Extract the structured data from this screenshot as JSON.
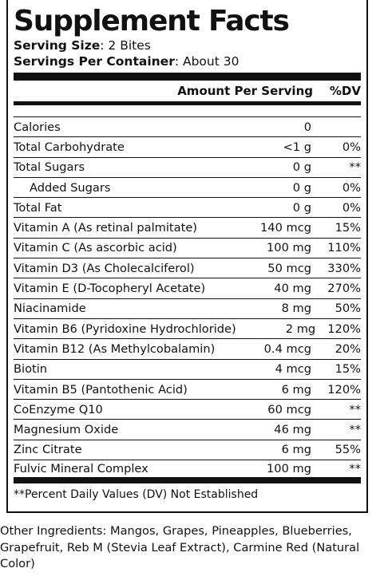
{
  "title": "Supplement Facts",
  "serving": {
    "size_label": "Serving Size",
    "size_value": ": 2 Bites",
    "per_container_label": "Servings Per Container",
    "per_container_value": ": About 30"
  },
  "header": {
    "amount_label": "Amount Per Serving",
    "dv_label": "%DV"
  },
  "rows": [
    {
      "name": "Calories",
      "amount": "0",
      "dv": ""
    },
    {
      "name": "Total Carbohydrate",
      "amount": "<1 g",
      "dv": "0%"
    },
    {
      "name": "Total Sugars",
      "amount": "0 g",
      "dv": "**"
    },
    {
      "name": "Added Sugars",
      "amount": "0 g",
      "dv": "0%"
    },
    {
      "name": "Total Fat",
      "amount": "0 g",
      "dv": "0%"
    },
    {
      "name": "Vitamin A (As retinal palmitate)",
      "amount": "140 mcg",
      "dv": "15%"
    },
    {
      "name": "Vitamin C (As ascorbic acid)",
      "amount": "100 mg",
      "dv": "110%"
    },
    {
      "name": "Vitamin D3 (As Cholecalciferol)",
      "amount": "50 mcg",
      "dv": "330%"
    },
    {
      "name": "Vitamin E (D-Tocopheryl Acetate)",
      "amount": "40 mg",
      "dv": "270%"
    },
    {
      "name": "Niacinamide",
      "amount": "8 mg",
      "dv": "50%"
    },
    {
      "name": "Vitamin B6 (Pyridoxine Hydrochloride)",
      "amount": "2 mg",
      "dv": "120%"
    },
    {
      "name": "Vitamin B12 (As Methylcobalamin)",
      "amount": "0.4 mcg",
      "dv": "20%"
    },
    {
      "name": "Biotin",
      "amount": "4 mcg",
      "dv": "15%"
    },
    {
      "name": "Vitamin B5 (Pantothenic Acid)",
      "amount": "6 mg",
      "dv": "120%"
    },
    {
      "name": "CoEnzyme Q10",
      "amount": "60 mcg",
      "dv": "**"
    },
    {
      "name": "Magnesium Oxide",
      "amount": "46 mg",
      "dv": "**"
    },
    {
      "name": "Zinc Citrate",
      "amount": "6 mg",
      "dv": "55%"
    },
    {
      "name": "Fulvic Mineral Complex",
      "amount": "100 mg",
      "dv": "**"
    }
  ],
  "footnote": "**Percent Daily Values (DV) Not Established",
  "other_ingredients": "Other Ingredients: Mangos, Grapes, Pineapples, Blueberries, Grapefruit, Reb M (Stevia Leaf Extract), Carmine Red (Natural Color)"
}
